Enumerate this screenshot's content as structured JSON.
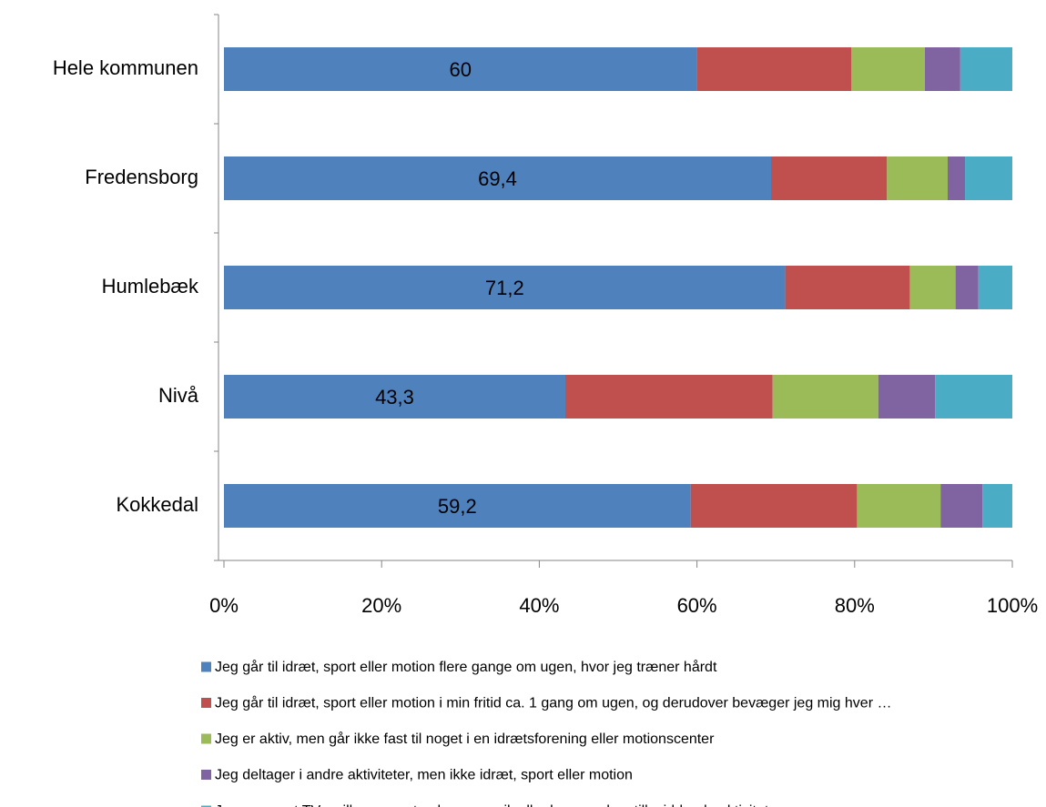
{
  "chart_data": {
    "type": "stacked_barh",
    "categories": [
      "Hele kommunen",
      "Fredensborg",
      "Humlebæk",
      "Nivå",
      "Kokkedal"
    ],
    "series": [
      {
        "name": "Jeg går til idræt, sport eller motion flere gange om ugen, hvor jeg træner hårdt",
        "color": "#4f81bd",
        "values": [
          60,
          69.4,
          71.2,
          43.3,
          59.2
        ],
        "value_labels": [
          "60",
          "69,4",
          "71,2",
          "43,3",
          "59,2"
        ]
      },
      {
        "name": "Jeg går til idræt, sport eller motion i min fritid ca. 1 gang om ugen, og derudover bevæger jeg mig hver …",
        "color": "#c0504d",
        "values": [
          19.6,
          14.7,
          15.8,
          26.3,
          21.1
        ]
      },
      {
        "name": "Jeg er aktiv, men går ikke fast til noget i en idrætsforening eller motionscenter",
        "color": "#9bbb59",
        "values": [
          9.3,
          7.7,
          5.8,
          13.4,
          10.6
        ]
      },
      {
        "name": "Jeg deltager i andre aktiviteter, men ikke idræt, sport eller motion",
        "color": "#8064a2",
        "values": [
          4.5,
          2.2,
          2.9,
          7.2,
          5.3
        ]
      },
      {
        "name": "Jeg ser mest TV, spiller computer, hører musik eller laver andre stillesiddende aktiviteter",
        "color": "#4bacc6",
        "values": [
          6.6,
          6.0,
          4.3,
          9.8,
          3.8
        ]
      }
    ],
    "xlim": [
      0,
      100
    ],
    "xticks": [
      {
        "value": 0,
        "label": "0%"
      },
      {
        "value": 20,
        "label": "20%"
      },
      {
        "value": 40,
        "label": "40%"
      },
      {
        "value": 60,
        "label": "60%"
      },
      {
        "value": 80,
        "label": "80%"
      },
      {
        "value": 100,
        "label": "100%"
      }
    ],
    "grid": false,
    "legend": "bottom"
  }
}
